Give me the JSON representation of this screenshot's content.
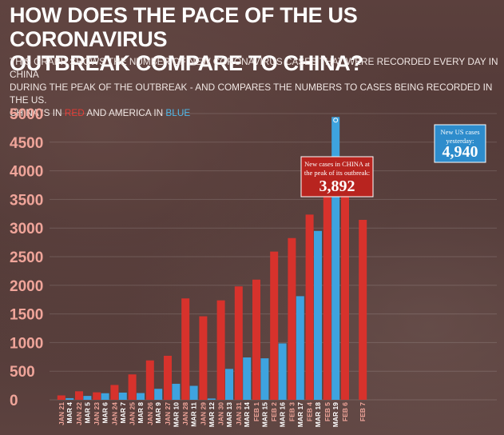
{
  "headline": {
    "line1": "HOW DOES THE PACE OF THE US CORONAVIRUS",
    "line2": "OUTBREAK COMPARE TO CHINA?"
  },
  "subtitle": {
    "line1": "THIS GRAPH SHOWS THE NUMBER OF NEW CORONAVIRUS CASES THAT WERE RECORDED EVERY DAY IN CHINA",
    "line2": "DURING THE PEAK OF THE OUTBREAK - AND COMPARES THE NUMBERS TO CASES BEING RECORDED IN THE US.",
    "line3_prefix": "CHINA IS IN",
    "red_word": "RED",
    "line3_middle": "AND AMERICA IN",
    "blue_word": "BLUE"
  },
  "colors": {
    "china": "#d7322c",
    "us": "#3ea3df",
    "tick_label": "#f0a59a",
    "callout_china": "#b8241f",
    "callout_us": "#2d8ccc"
  },
  "chart_data": {
    "type": "bar",
    "ylim": [
      0,
      5000
    ],
    "yticks": [
      "0",
      "500",
      "1000",
      "1500",
      "2000",
      "2500",
      "3000",
      "3500",
      "4000",
      "4500",
      "5000"
    ],
    "categories": [
      {
        "china": "JAN 21",
        "us": "MAR 4"
      },
      {
        "china": "JAN 22",
        "us": "MAR 5"
      },
      {
        "china": "JAN 23",
        "us": "MAR 6"
      },
      {
        "china": "JAN 24",
        "us": "MAR 7"
      },
      {
        "china": "JAN 25",
        "us": "MAR 8"
      },
      {
        "china": "JAN 26",
        "us": "MAR 9"
      },
      {
        "china": "JAN 27",
        "us": "MAR 10"
      },
      {
        "china": "JAN 28",
        "us": "MAR 11"
      },
      {
        "china": "JAN 29",
        "us": "MAR 12"
      },
      {
        "china": "JAN 30",
        "us": "MAR 13"
      },
      {
        "china": "JAN 31",
        "us": "MAR 14"
      },
      {
        "china": "FEB 1",
        "us": "MAR 15"
      },
      {
        "china": "FEB 2",
        "us": "MAR 16"
      },
      {
        "china": "FEB 3",
        "us": "MAR 17"
      },
      {
        "china": "FEB 4",
        "us": "MAR 18"
      },
      {
        "china": "FEB 5",
        "us": "MAR 19"
      },
      {
        "china": "FEB 6",
        "us": null
      },
      {
        "china": "FEB 7",
        "us": null
      }
    ],
    "series": [
      {
        "key": "china",
        "values": [
          77,
          149,
          131,
          259,
          444,
          688,
          769,
          1771,
          1459,
          1737,
          1981,
          2099,
          2589,
          2825,
          3235,
          3892,
          3697,
          3143
        ]
      },
      {
        "key": "us",
        "values": [
          29,
          68,
          115,
          126,
          118,
          192,
          280,
          244,
          23,
          540,
          740,
          725,
          985,
          1810,
          2950,
          4940,
          null,
          null
        ]
      }
    ],
    "annotations": [
      {
        "series": "china",
        "index": 15,
        "text_line1": "New cases in CHINA at",
        "text_line2": "the peak of its outbreak:",
        "value": "3,892"
      },
      {
        "series": "us",
        "index": 15,
        "text_line1": "New US cases",
        "text_line2": "yesterday:",
        "value": "4,940"
      }
    ]
  }
}
